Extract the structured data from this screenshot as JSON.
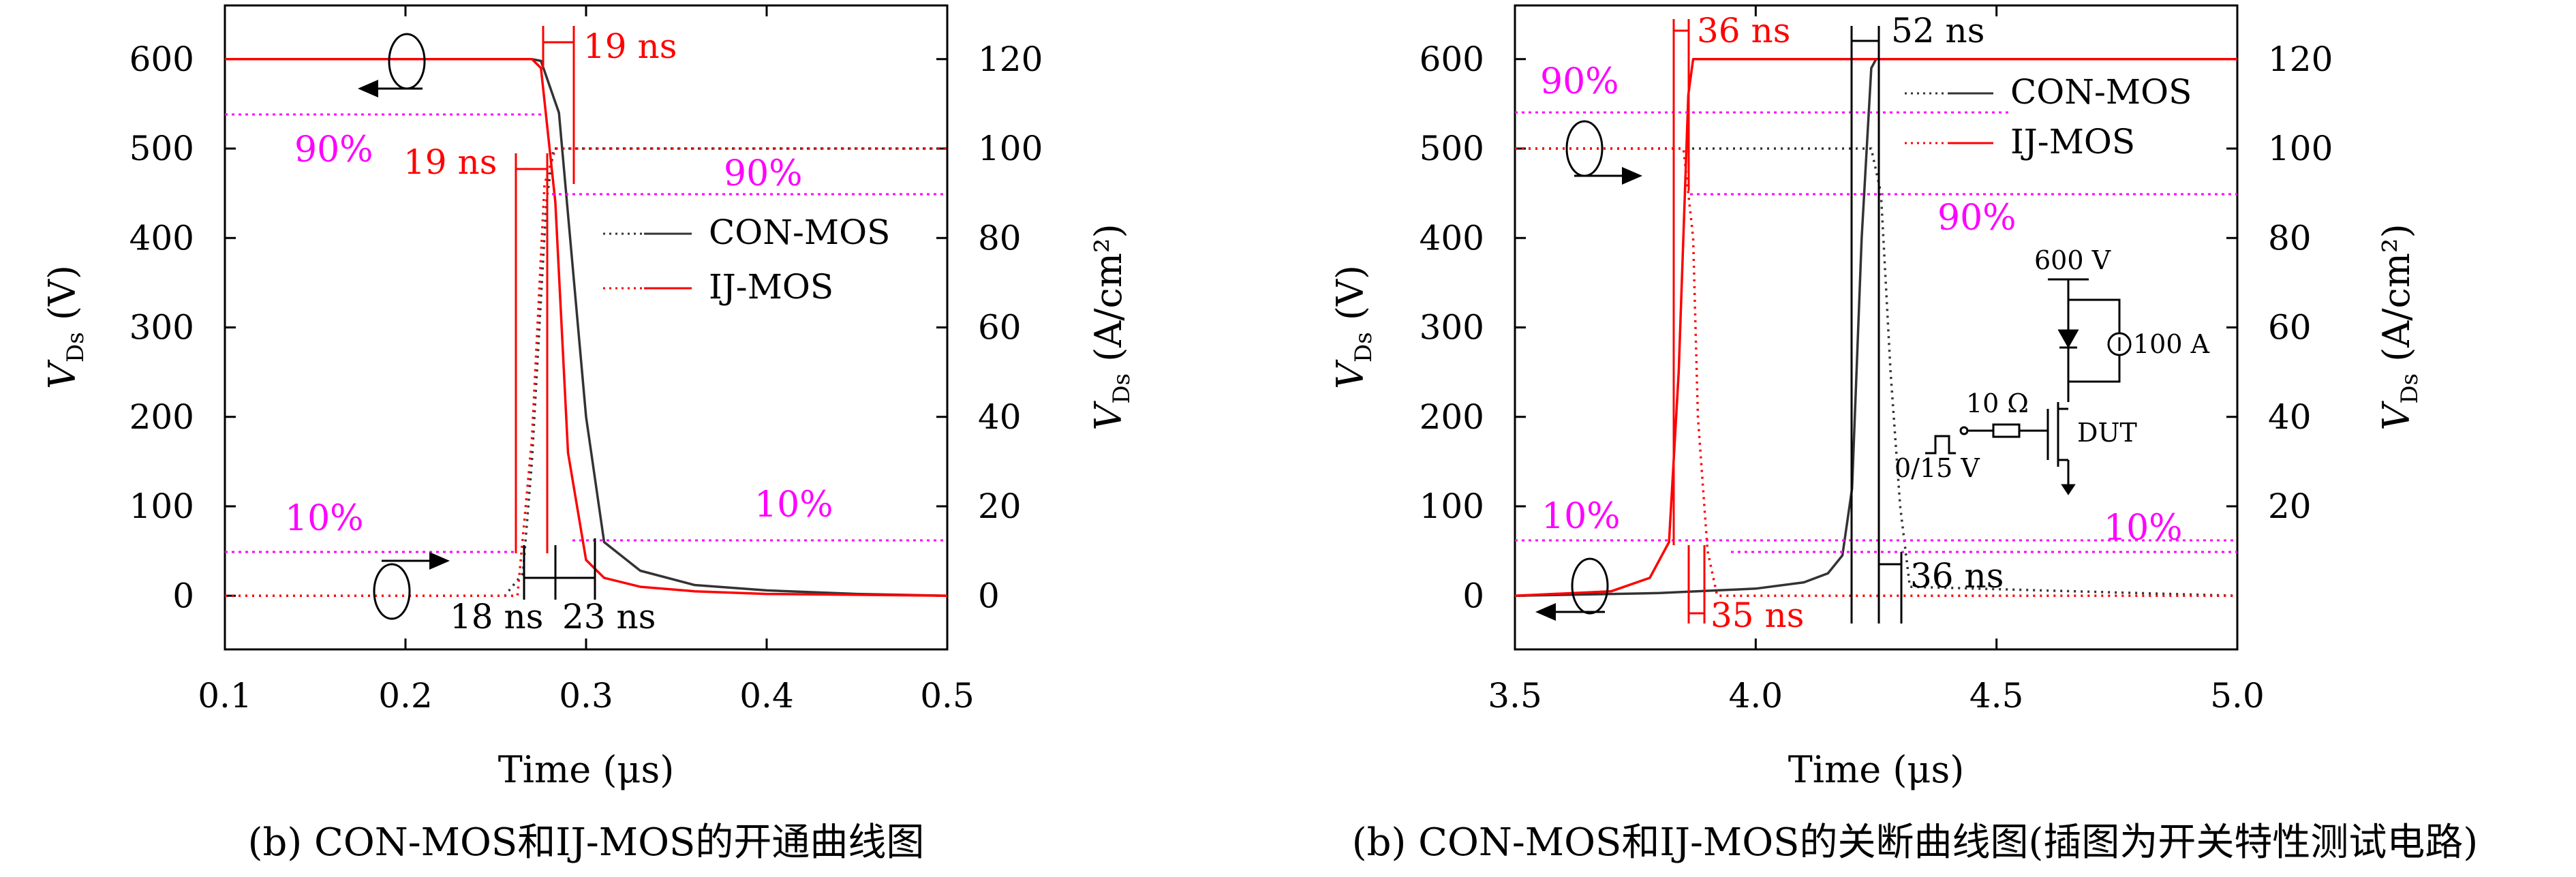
{
  "chart_data": [
    {
      "type": "line",
      "caption": "(b) CON-MOS和IJ-MOS的开通曲线图",
      "xlabel": "Time (μs)",
      "ylabel_left": "V",
      "ylabel_left_sub": "Ds",
      "ylabel_left_unit": " (V)",
      "ylabel_right": "V",
      "ylabel_right_sub": "Ds",
      "ylabel_right_unit": " (A/cm²)",
      "xlim": [
        0.1,
        0.5
      ],
      "ylim_left": [
        -60,
        660
      ],
      "ylim_right": [
        -12,
        132
      ],
      "xticks": [
        "0.1",
        "0.2",
        "0.3",
        "0.4",
        "0.5"
      ],
      "yticks_left": [
        "0",
        "100",
        "200",
        "300",
        "400",
        "500",
        "600"
      ],
      "yticks_right": [
        "0",
        "20",
        "40",
        "60",
        "80",
        "100",
        "120"
      ],
      "legend": [
        "CON-MOS",
        "IJ-MOS"
      ],
      "series": [
        {
          "name": "CON-MOS",
          "quantity": "voltage",
          "color": "#333333",
          "style": "solid",
          "x": [
            0.1,
            0.27,
            0.275,
            0.285,
            0.3,
            0.31,
            0.33,
            0.36,
            0.4,
            0.45,
            0.5
          ],
          "y": [
            600,
            600,
            598,
            540,
            200,
            60,
            28,
            12,
            6,
            2,
            0
          ]
        },
        {
          "name": "CON-MOS",
          "quantity": "current",
          "color": "#333333",
          "style": "dotted",
          "x": [
            0.1,
            0.255,
            0.265,
            0.27,
            0.278,
            0.282,
            0.5
          ],
          "y": [
            0,
            0,
            5,
            30,
            88,
            100,
            100
          ]
        },
        {
          "name": "IJ-MOS",
          "quantity": "voltage",
          "color": "#ff0000",
          "style": "solid",
          "x": [
            0.1,
            0.27,
            0.275,
            0.283,
            0.29,
            0.3,
            0.31,
            0.33,
            0.36,
            0.4,
            0.45,
            0.5
          ],
          "y": [
            600,
            600,
            590,
            440,
            160,
            40,
            20,
            10,
            5,
            2,
            1,
            0
          ]
        },
        {
          "name": "IJ-MOS",
          "quantity": "current",
          "color": "#ff0000",
          "style": "dotted",
          "x": [
            0.1,
            0.262,
            0.27,
            0.277,
            0.283,
            0.5
          ],
          "y": [
            0,
            0,
            35,
            92,
            100,
            100
          ]
        }
      ],
      "annotations": [
        "19 ns",
        "19 ns",
        "18 ns",
        "23 ns",
        "90%",
        "90%",
        "10%",
        "10%"
      ]
    },
    {
      "type": "line",
      "caption": "(b) CON-MOS和IJ-MOS的关断曲线图(插图为开关特性测试电路)",
      "xlabel": "Time (μs)",
      "ylabel_left": "V",
      "ylabel_left_sub": "Ds",
      "ylabel_left_unit": " (V)",
      "ylabel_right": "V",
      "ylabel_right_sub": "Ds",
      "ylabel_right_unit": " (A/cm²)",
      "xlim": [
        3.5,
        5.0
      ],
      "ylim_left": [
        -60,
        660
      ],
      "ylim_right": [
        -12,
        132
      ],
      "xticks": [
        "3.5",
        "4.0",
        "4.5",
        "5.0"
      ],
      "yticks_left": [
        "0",
        "100",
        "200",
        "300",
        "400",
        "500",
        "600"
      ],
      "yticks_right": [
        "20",
        "40",
        "60",
        "80",
        "100",
        "120"
      ],
      "legend": [
        "CON-MOS",
        "IJ-MOS"
      ],
      "series": [
        {
          "name": "CON-MOS",
          "quantity": "voltage",
          "color": "#333333",
          "style": "solid",
          "x": [
            3.5,
            3.8,
            4.0,
            4.1,
            4.15,
            4.18,
            4.2,
            4.22,
            4.24,
            4.25,
            5.0
          ],
          "y": [
            0,
            3,
            8,
            15,
            25,
            45,
            120,
            400,
            590,
            600,
            600
          ]
        },
        {
          "name": "CON-MOS",
          "quantity": "current",
          "color": "#333333",
          "style": "dotted",
          "x": [
            3.5,
            4.24,
            4.26,
            4.28,
            4.3,
            4.32,
            5.0
          ],
          "y": [
            100,
            100,
            90,
            50,
            20,
            2,
            0
          ]
        },
        {
          "name": "IJ-MOS",
          "quantity": "voltage",
          "color": "#ff0000",
          "style": "solid",
          "x": [
            3.5,
            3.7,
            3.78,
            3.82,
            3.84,
            3.86,
            3.87,
            5.0
          ],
          "y": [
            0,
            5,
            20,
            60,
            250,
            560,
            600,
            600
          ]
        },
        {
          "name": "IJ-MOS",
          "quantity": "current",
          "color": "#ff0000",
          "style": "dotted",
          "x": [
            3.5,
            3.85,
            3.87,
            3.88,
            3.9,
            3.92,
            5.0
          ],
          "y": [
            100,
            100,
            80,
            40,
            10,
            0,
            0
          ]
        }
      ],
      "annotations": [
        "36 ns",
        "52 ns",
        "90%",
        "90%",
        "10%",
        "10%",
        "35 ns",
        "36 ns"
      ],
      "inset": {
        "supply": "600 V",
        "current_source": "100 A",
        "gate_resistor": "10 Ω",
        "gate_pulse": "0/15 V",
        "device": "DUT"
      }
    }
  ]
}
